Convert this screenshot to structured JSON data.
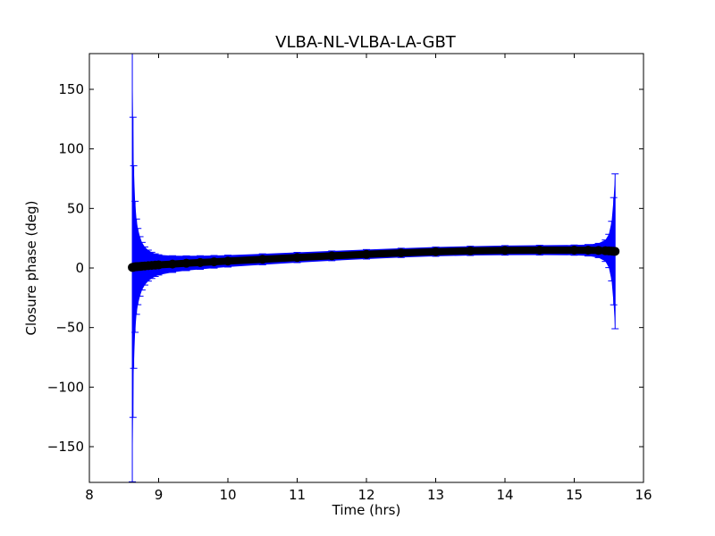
{
  "chart_data": {
    "type": "scatter",
    "title": "VLBA-NL-VLBA-LA-GBT",
    "xlabel": "Time (hrs)",
    "ylabel": "Closure phase (deg)",
    "xlim": [
      8,
      16
    ],
    "ylim": [
      -180,
      180
    ],
    "xticks": [
      8,
      9,
      10,
      11,
      12,
      13,
      14,
      15,
      16
    ],
    "xtick_labels": [
      "8",
      "9",
      "10",
      "11",
      "12",
      "13",
      "14",
      "15",
      "16"
    ],
    "yticks": [
      -150,
      -100,
      -50,
      0,
      50,
      100,
      150
    ],
    "ytick_labels": [
      "−150",
      "−100",
      "−50",
      "0",
      "50",
      "100",
      "150"
    ],
    "grid": false,
    "series": [
      {
        "marker_color": "#000000",
        "errorbar_color": "#0000ff",
        "x": [
          8.62,
          8.63,
          8.64,
          8.66,
          8.68,
          8.7,
          8.73,
          8.76,
          8.8,
          8.85,
          8.9,
          8.95,
          9.0,
          9.2,
          9.4,
          9.6,
          9.8,
          10.0,
          10.5,
          11.0,
          11.5,
          12.0,
          12.5,
          13.0,
          13.5,
          14.0,
          14.5,
          15.0,
          15.2,
          15.35,
          15.45,
          15.5,
          15.54,
          15.57,
          15.59
        ],
        "y": [
          0.5,
          0.6,
          0.8,
          1.0,
          1.1,
          1.2,
          1.3,
          1.5,
          1.7,
          2.0,
          2.2,
          2.4,
          2.6,
          3.3,
          4.0,
          4.6,
          5.2,
          5.8,
          7.3,
          8.8,
          10.2,
          11.5,
          12.7,
          13.7,
          14.4,
          14.8,
          15.0,
          15.0,
          14.9,
          14.7,
          14.5,
          14.3,
          14.2,
          14.1,
          14.0
        ],
        "err": [
          180,
          126,
          85,
          55,
          40,
          32,
          25,
          20,
          16,
          13,
          11,
          9.5,
          8.5,
          7,
          6.2,
          5.7,
          5.3,
          5.0,
          4.6,
          4.3,
          4.1,
          4.0,
          3.9,
          3.9,
          3.9,
          4.0,
          4.1,
          4.3,
          4.8,
          6,
          9,
          14,
          25,
          45,
          65
        ]
      }
    ]
  }
}
